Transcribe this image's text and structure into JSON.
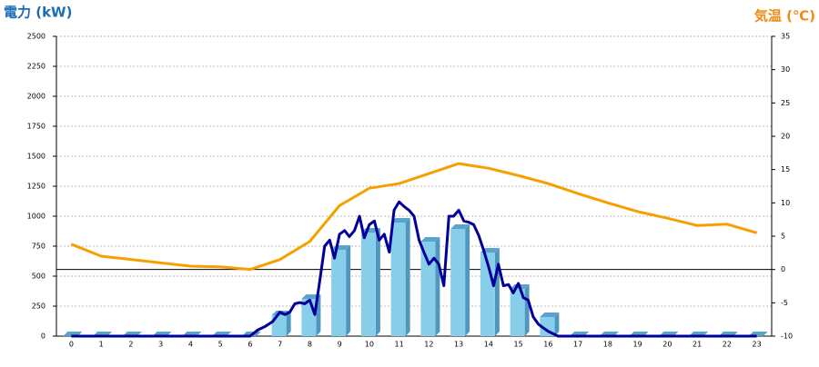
{
  "chart_data": {
    "type": "combo",
    "y_label": "電力 (kW)",
    "y2_label": "気温 (℃)",
    "categories": [
      "0",
      "1",
      "2",
      "3",
      "4",
      "5",
      "6",
      "7",
      "8",
      "9",
      "10",
      "11",
      "12",
      "13",
      "14",
      "15",
      "16",
      "17",
      "18",
      "19",
      "20",
      "21",
      "22",
      "23"
    ],
    "ylim": [
      0,
      2500
    ],
    "yticks": [
      0,
      250,
      500,
      750,
      1000,
      1250,
      1500,
      1750,
      2000,
      2250,
      2500
    ],
    "y2lim": [
      -10,
      35
    ],
    "y2ticks": [
      -10,
      -5,
      0,
      5,
      10,
      15,
      20,
      25,
      30,
      35
    ],
    "grid": true,
    "series": [
      {
        "type": "bar",
        "color": "#87ceeb",
        "values": [
          0,
          0,
          0,
          0,
          0,
          0,
          0,
          174,
          310,
          720,
          864,
          947,
          788,
          894,
          697,
          394,
          159,
          0,
          0,
          0,
          0,
          0,
          0,
          0
        ]
      },
      {
        "type": "line",
        "axis": "y2",
        "color": "#f5a000",
        "values": [
          3.8,
          2.0,
          1.5,
          1.0,
          0.5,
          0.4,
          0,
          1.5,
          4.2,
          9.6,
          12.2,
          12.9,
          14.4,
          15.9,
          15.2,
          14.1,
          12.9,
          11.4,
          10.0,
          8.7,
          7.7,
          6.6,
          6.8,
          5.5
        ]
      },
      {
        "type": "line",
        "color": "#000099",
        "x": [
          0,
          6.0,
          6.25,
          6.5,
          6.75,
          7.0,
          7.17,
          7.33,
          7.5,
          7.67,
          7.83,
          8.0,
          8.17,
          8.33,
          8.5,
          8.67,
          8.83,
          9.0,
          9.17,
          9.33,
          9.5,
          9.67,
          9.83,
          10.0,
          10.17,
          10.33,
          10.5,
          10.67,
          10.83,
          11.0,
          11.17,
          11.33,
          11.5,
          11.67,
          11.83,
          12.0,
          12.17,
          12.33,
          12.5,
          12.67,
          12.83,
          13.0,
          13.17,
          13.33,
          13.5,
          13.67,
          13.83,
          14.0,
          14.17,
          14.33,
          14.5,
          14.67,
          14.83,
          15.0,
          15.17,
          15.33,
          15.5,
          15.67,
          15.83,
          16.0,
          16.17,
          16.33,
          17,
          23
        ],
        "values": [
          0,
          0,
          50,
          80,
          120,
          200,
          180,
          200,
          270,
          280,
          270,
          300,
          180,
          450,
          750,
          800,
          650,
          850,
          880,
          830,
          880,
          1000,
          820,
          930,
          960,
          800,
          850,
          700,
          1050,
          1120,
          1080,
          1050,
          1000,
          800,
          700,
          600,
          650,
          600,
          420,
          1000,
          1000,
          1050,
          960,
          950,
          930,
          840,
          720,
          580,
          420,
          600,
          420,
          430,
          360,
          440,
          320,
          300,
          160,
          100,
          70,
          40,
          20,
          0,
          0,
          0
        ]
      }
    ]
  }
}
